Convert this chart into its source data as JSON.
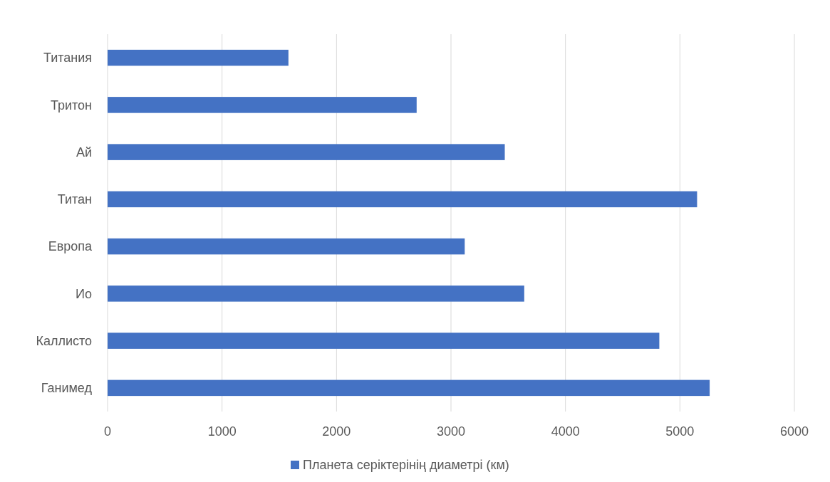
{
  "chart_data": {
    "type": "bar",
    "orientation": "horizontal",
    "categories": [
      "Титания",
      "Тритон",
      "Ай",
      "Титан",
      "Европа",
      "Ио",
      "Каллисто",
      "Ганимед"
    ],
    "series": [
      {
        "name": "Планета серіктерінің диаметрі (км)",
        "color": "#4472c4",
        "values": [
          1580,
          2700,
          3470,
          5150,
          3120,
          3640,
          4820,
          5260
        ]
      }
    ],
    "xlim": [
      0,
      6000
    ],
    "xticks": [
      0,
      1000,
      2000,
      3000,
      4000,
      5000,
      6000
    ],
    "grid": "x",
    "legend": "bottom"
  }
}
